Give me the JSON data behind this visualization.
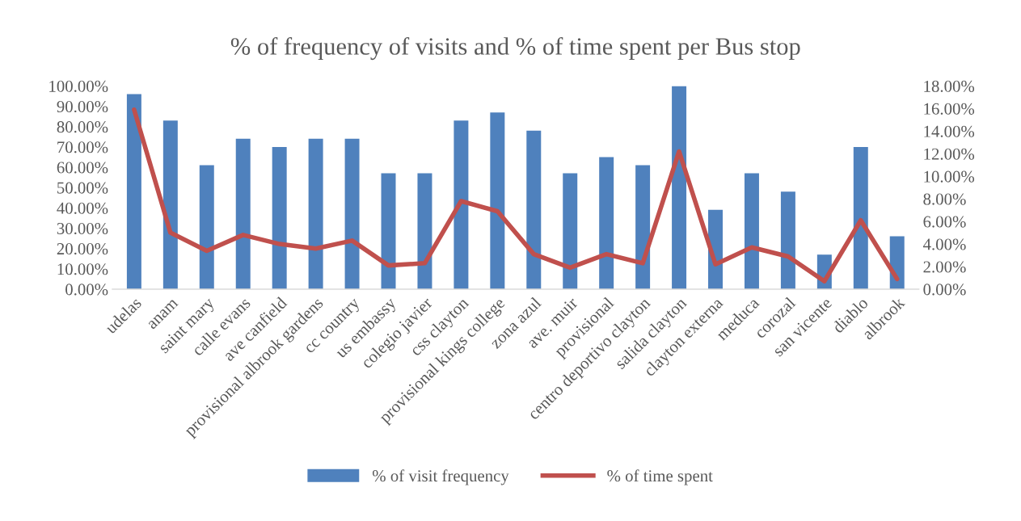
{
  "chart_data": {
    "type": "bar",
    "title": "% of frequency of visits and % of time spent per Bus stop",
    "categories": [
      "udelas",
      "anam",
      "saint mary",
      "calle evans",
      "ave canfield",
      "provisional albrook gardens",
      "cc country",
      "us embassy",
      "colegio javier",
      "css clayton",
      "provisional kings college",
      "zona azul",
      "ave. muir",
      "provisional",
      "centro deportivo clayton",
      "salida clayton",
      "clayton externa",
      "meduca",
      "corozal",
      "san vicente",
      "diablo",
      "albrook"
    ],
    "series": [
      {
        "name": "% of visit frequency",
        "color": "#4f81bd",
        "values": [
          96,
          83,
          61,
          74,
          70,
          74,
          74,
          57,
          57,
          83,
          87,
          78,
          57,
          65,
          61,
          100,
          39,
          57,
          48,
          17,
          70,
          26
        ]
      },
      {
        "name": "% of time spent",
        "color": "#c0504d",
        "type": "line",
        "axis": "y2",
        "values": [
          15.9,
          5.0,
          3.4,
          4.8,
          4.0,
          3.6,
          4.3,
          2.1,
          2.3,
          7.8,
          6.9,
          3.1,
          1.9,
          3.1,
          2.3,
          12.2,
          2.2,
          3.7,
          2.9,
          0.7,
          6.1,
          0.9
        ]
      }
    ],
    "ylim": [
      0,
      100
    ],
    "yticks": [
      {
        "value": 0,
        "label": "0.00%"
      },
      {
        "value": 10,
        "label": "10.00%"
      },
      {
        "value": 20,
        "label": "20.00%"
      },
      {
        "value": 30,
        "label": "30.00%"
      },
      {
        "value": 40,
        "label": "40.00%"
      },
      {
        "value": 50,
        "label": "50.00%"
      },
      {
        "value": 60,
        "label": "60.00%"
      },
      {
        "value": 70,
        "label": "70.00%"
      },
      {
        "value": 80,
        "label": "80.00%"
      },
      {
        "value": 90,
        "label": "90.00%"
      },
      {
        "value": 100,
        "label": "100.00%"
      }
    ],
    "y2lim": [
      0,
      18
    ],
    "y2ticks": [
      {
        "value": 0,
        "label": "0.00%"
      },
      {
        "value": 2,
        "label": "2.00%"
      },
      {
        "value": 4,
        "label": "4.00%"
      },
      {
        "value": 6,
        "label": "6.00%"
      },
      {
        "value": 8,
        "label": "8.00%"
      },
      {
        "value": 10,
        "label": "10.00%"
      },
      {
        "value": 12,
        "label": "12.00%"
      },
      {
        "value": 14,
        "label": "14.00%"
      },
      {
        "value": 16,
        "label": "16.00%"
      },
      {
        "value": 18,
        "label": "18.00%"
      }
    ],
    "grid": false,
    "legend": "bottom",
    "line_style": "solid",
    "marker": "none"
  }
}
